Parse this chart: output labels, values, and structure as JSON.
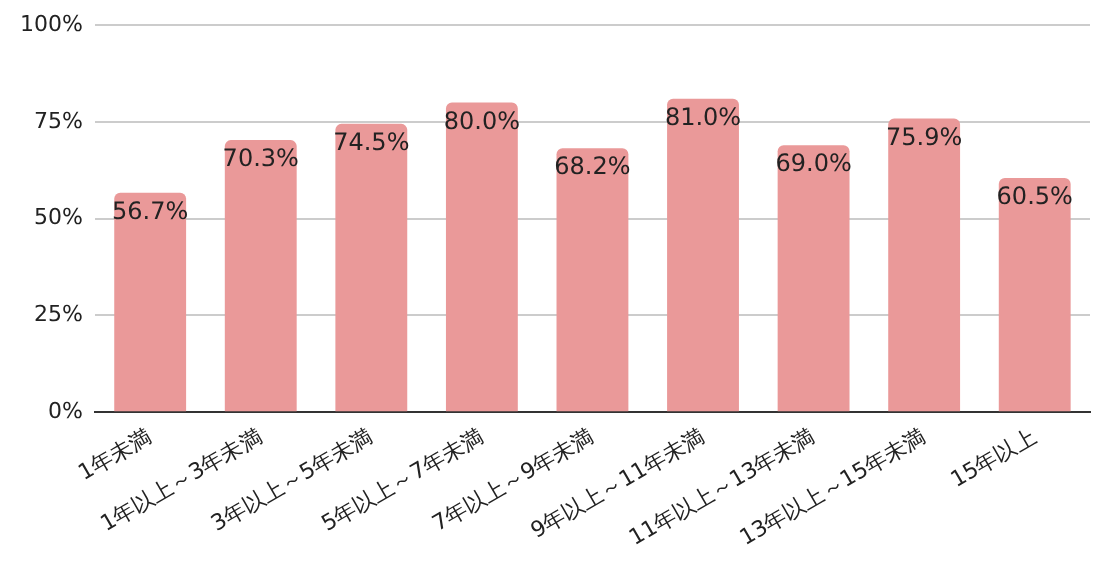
{
  "chart_data": {
    "type": "bar",
    "categories": [
      "1年未満",
      "1年以上～3年未満",
      "3年以上～5年未満",
      "5年以上～7年未満",
      "7年以上～9年未満",
      "9年以上～11年未満",
      "11年以上～13年未満",
      "13年以上～15年未満",
      "15年以上"
    ],
    "values": [
      56.7,
      70.3,
      74.5,
      80.0,
      68.2,
      81.0,
      69.0,
      75.9,
      60.5
    ],
    "value_labels": [
      "56.7%",
      "70.3%",
      "74.5%",
      "80.0%",
      "68.2%",
      "81.0%",
      "69.0%",
      "75.9%",
      "60.5%"
    ],
    "color": "#ea9999",
    "ylim": [
      0,
      100
    ],
    "yticks": [
      {
        "value": 0,
        "label": "0%"
      },
      {
        "value": 25,
        "label": "25%"
      },
      {
        "value": 50,
        "label": "50%"
      },
      {
        "value": 75,
        "label": "75%"
      },
      {
        "value": 100,
        "label": "100%"
      }
    ],
    "grid": "y"
  }
}
